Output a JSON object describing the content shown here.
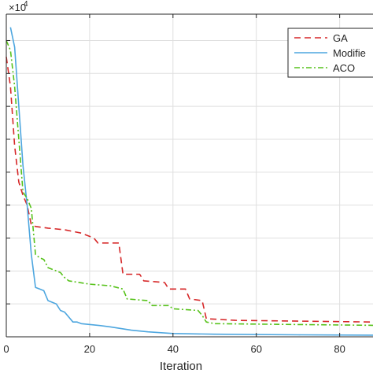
{
  "chart_data": {
    "type": "line",
    "title": "",
    "xlabel": "Iteration",
    "ylabel": "",
    "y_exponent_base": "×10",
    "y_exponent_power": "4",
    "xlim": [
      0,
      88
    ],
    "ylim": [
      0,
      9.8
    ],
    "xticks": [
      0,
      20,
      40,
      60,
      80
    ],
    "xtick_labels": [
      "0",
      "20",
      "40",
      "60",
      "80"
    ],
    "yticks": [
      1,
      2,
      3,
      4,
      5,
      6,
      7,
      8,
      9
    ],
    "grid": true,
    "legend_placement": "top-right",
    "series": [
      {
        "name": "GA",
        "color": "#d62728",
        "dash": "dashed",
        "points": [
          [
            0,
            8.5
          ],
          [
            1,
            7.6
          ],
          [
            2,
            5.8
          ],
          [
            3,
            4.7
          ],
          [
            4,
            4.3
          ],
          [
            5,
            4.0
          ],
          [
            6,
            3.4
          ],
          [
            7,
            3.35
          ],
          [
            10,
            3.3
          ],
          [
            14,
            3.25
          ],
          [
            18,
            3.15
          ],
          [
            21,
            3.0
          ],
          [
            22,
            2.85
          ],
          [
            27,
            2.85
          ],
          [
            28,
            1.9
          ],
          [
            32,
            1.9
          ],
          [
            33,
            1.7
          ],
          [
            38,
            1.65
          ],
          [
            39,
            1.45
          ],
          [
            43,
            1.45
          ],
          [
            44,
            1.15
          ],
          [
            47,
            1.1
          ],
          [
            48,
            0.55
          ],
          [
            55,
            0.5
          ],
          [
            88,
            0.45
          ]
        ]
      },
      {
        "name": "Modifie",
        "color": "#4da6df",
        "dash": "solid",
        "points": [
          [
            1,
            9.4
          ],
          [
            2,
            8.8
          ],
          [
            3,
            7.0
          ],
          [
            4,
            5.2
          ],
          [
            5,
            4.0
          ],
          [
            6,
            2.5
          ],
          [
            7,
            1.5
          ],
          [
            8,
            1.45
          ],
          [
            9,
            1.4
          ],
          [
            10,
            1.1
          ],
          [
            12,
            1.0
          ],
          [
            13,
            0.8
          ],
          [
            14,
            0.75
          ],
          [
            16,
            0.45
          ],
          [
            17,
            0.45
          ],
          [
            18,
            0.4
          ],
          [
            22,
            0.35
          ],
          [
            25,
            0.3
          ],
          [
            30,
            0.2
          ],
          [
            34,
            0.15
          ],
          [
            40,
            0.1
          ],
          [
            50,
            0.08
          ],
          [
            70,
            0.06
          ],
          [
            88,
            0.05
          ]
        ]
      },
      {
        "name": "ACO",
        "color": "#57c21b",
        "dash": "dashdot",
        "points": [
          [
            0,
            9.0
          ],
          [
            1,
            8.7
          ],
          [
            2,
            7.6
          ],
          [
            3,
            6.0
          ],
          [
            4,
            4.4
          ],
          [
            5,
            4.2
          ],
          [
            6,
            3.9
          ],
          [
            7,
            2.5
          ],
          [
            8,
            2.4
          ],
          [
            9,
            2.35
          ],
          [
            10,
            2.1
          ],
          [
            11,
            2.05
          ],
          [
            12,
            2.0
          ],
          [
            13,
            1.95
          ],
          [
            14,
            1.8
          ],
          [
            15,
            1.7
          ],
          [
            20,
            1.6
          ],
          [
            25,
            1.55
          ],
          [
            28,
            1.45
          ],
          [
            29,
            1.15
          ],
          [
            34,
            1.1
          ],
          [
            35,
            0.95
          ],
          [
            39,
            0.95
          ],
          [
            40,
            0.85
          ],
          [
            46,
            0.8
          ],
          [
            47,
            0.65
          ],
          [
            48,
            0.45
          ],
          [
            50,
            0.4
          ],
          [
            88,
            0.35
          ]
        ]
      }
    ]
  }
}
